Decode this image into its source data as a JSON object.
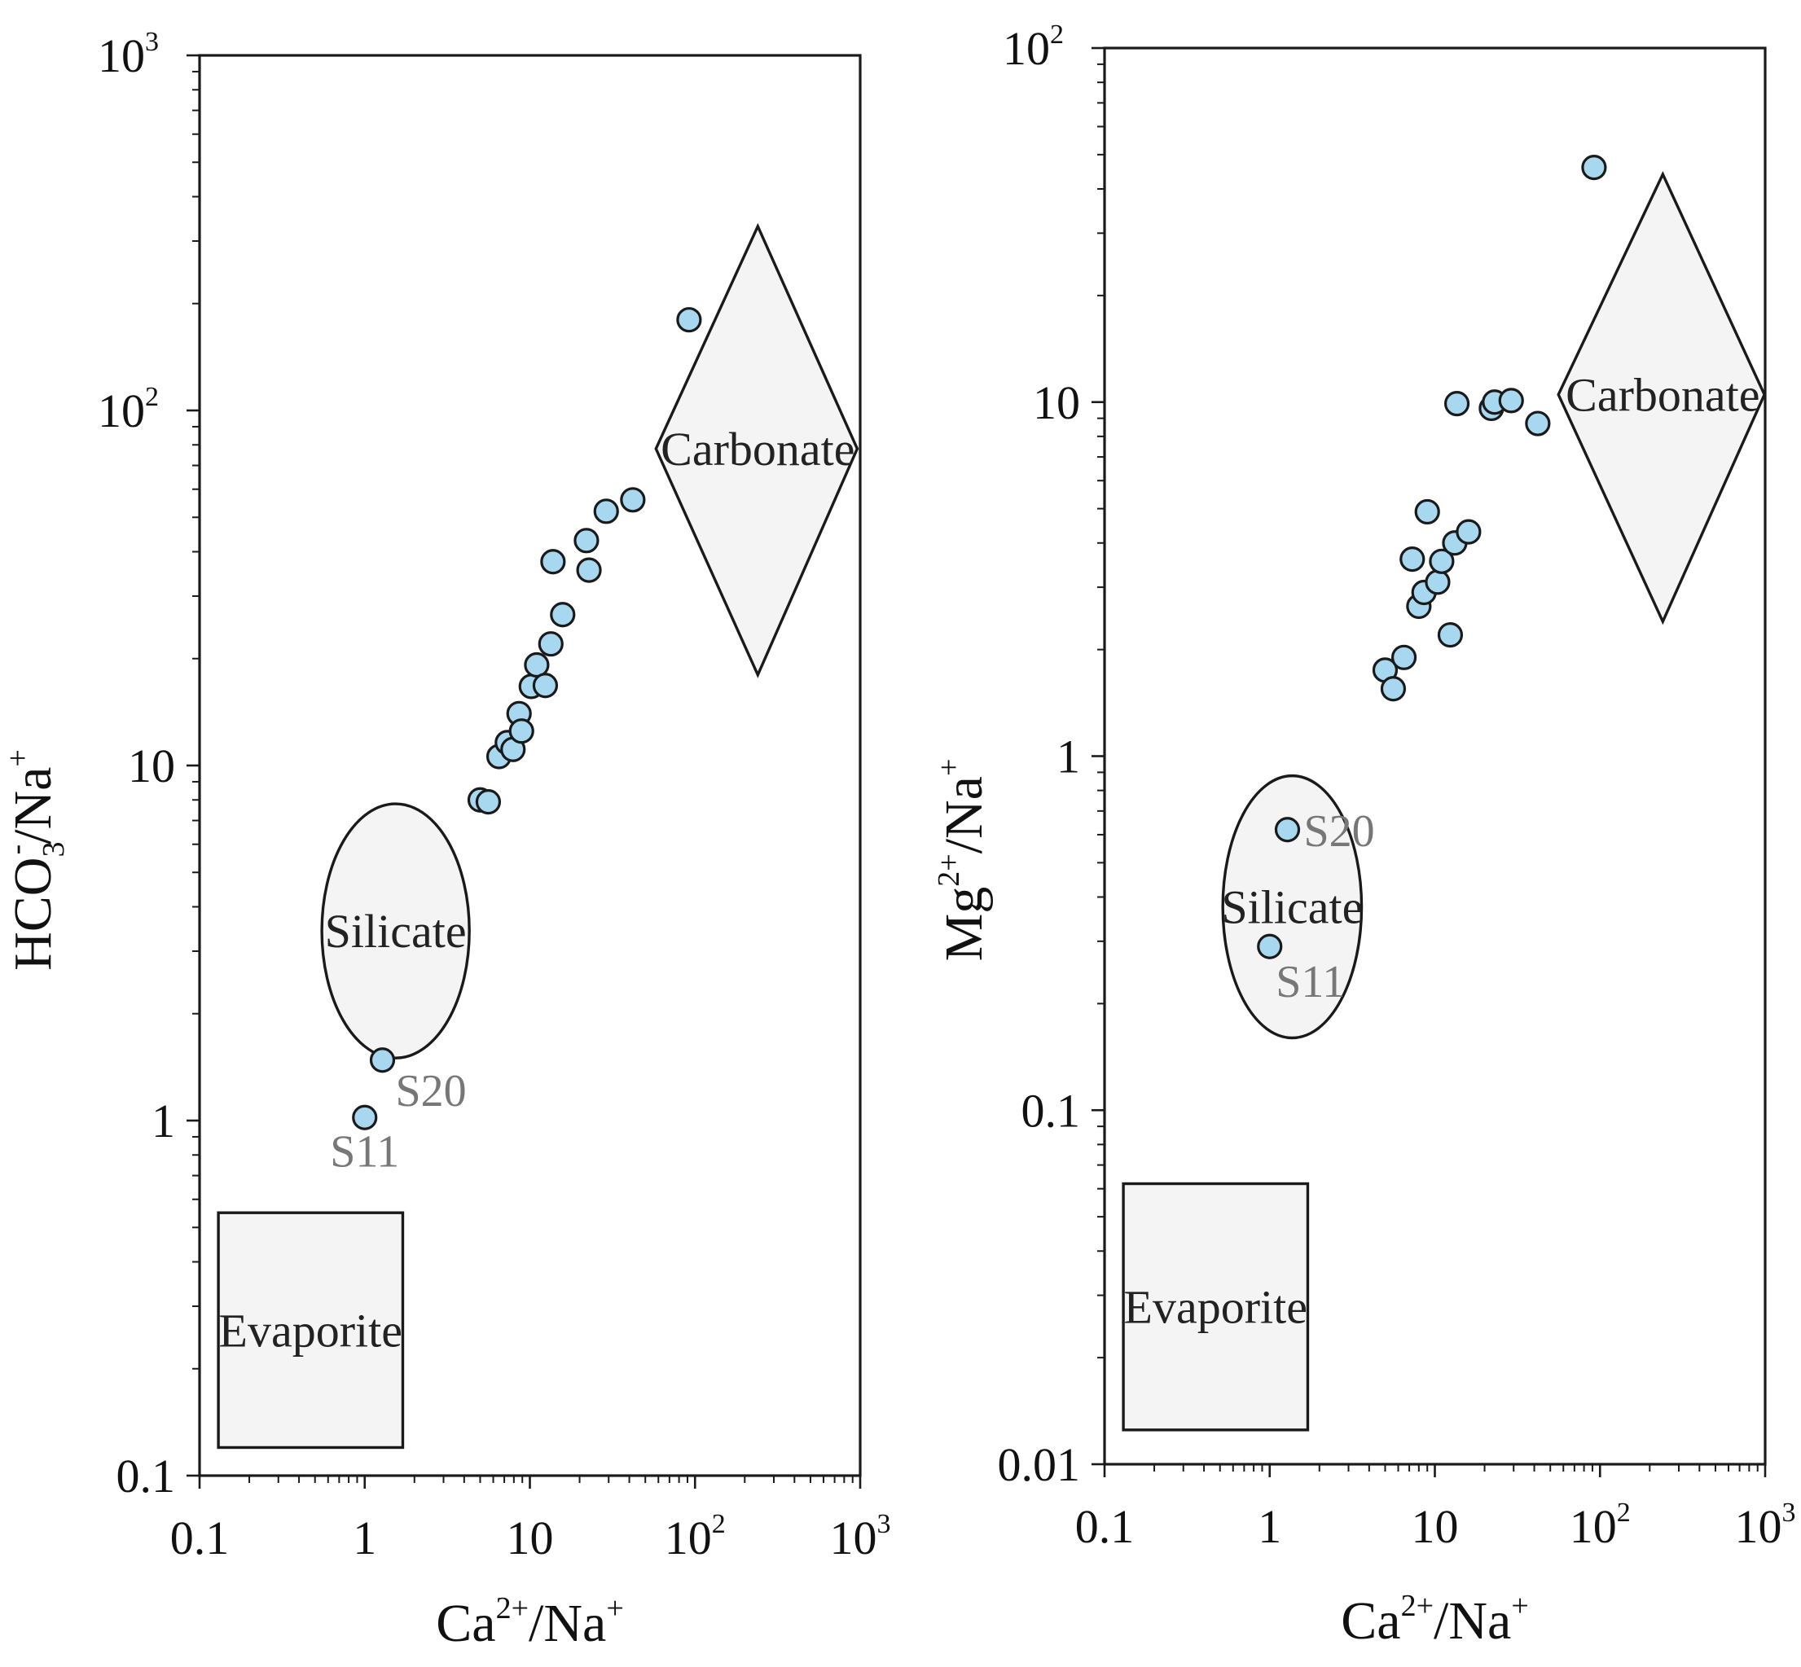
{
  "colors": {
    "point_fill": "#a8d8f0",
    "region_fill": "#f4f4f4",
    "stroke": "#1a1a1a",
    "sample_label": "#777777"
  },
  "chart_data": [
    {
      "type": "scatter",
      "xscale": "log",
      "yscale": "log",
      "xlim": [
        0.1,
        1000
      ],
      "ylim": [
        0.1,
        1000
      ],
      "xlabel": "Ca2+/Na+",
      "ylabel": "HCO3-/Na+",
      "xlabel_parts": {
        "base": "Ca",
        "sup": "2+",
        "rest": "/Na",
        "sup2": "+"
      },
      "ylabel_parts": {
        "base": "HCO",
        "sub": "3",
        "sup": "-",
        "rest": "/Na",
        "sup2": "+"
      },
      "xticks": [
        {
          "label": "0.1",
          "exp": ""
        },
        {
          "label": "1",
          "exp": ""
        },
        {
          "label": "10",
          "exp": ""
        },
        {
          "label": "10",
          "exp": "2"
        },
        {
          "label": "10",
          "exp": "3"
        }
      ],
      "yticks": [
        {
          "label": "0.1",
          "exp": ""
        },
        {
          "label": "1",
          "exp": ""
        },
        {
          "label": "10",
          "exp": ""
        },
        {
          "label": "10",
          "exp": "2"
        },
        {
          "label": "10",
          "exp": "3"
        }
      ],
      "regions": [
        {
          "name": "Evaporite",
          "shape": "rect",
          "x": [
            0.13,
            1.7
          ],
          "y": [
            0.12,
            0.55
          ]
        },
        {
          "name": "Silicate",
          "shape": "ellipse",
          "center": [
            1.55,
            3.4
          ],
          "x": [
            0.55,
            4.3
          ],
          "y": [
            1.5,
            7.8
          ]
        },
        {
          "name": "Carbonate",
          "shape": "diamond",
          "center": [
            240,
            78
          ],
          "x": [
            58,
            960
          ],
          "y": [
            18,
            330
          ]
        }
      ],
      "points": [
        {
          "x": 1.0,
          "y": 1.02,
          "label": "S11"
        },
        {
          "x": 1.28,
          "y": 1.48,
          "label": "S20"
        },
        {
          "x": 5.0,
          "y": 8.0
        },
        {
          "x": 5.6,
          "y": 7.9
        },
        {
          "x": 6.5,
          "y": 10.6
        },
        {
          "x": 7.3,
          "y": 11.6
        },
        {
          "x": 7.9,
          "y": 11.1
        },
        {
          "x": 8.6,
          "y": 14.0
        },
        {
          "x": 8.9,
          "y": 12.5
        },
        {
          "x": 10.2,
          "y": 16.7
        },
        {
          "x": 11.0,
          "y": 19.2
        },
        {
          "x": 12.4,
          "y": 16.8
        },
        {
          "x": 13.4,
          "y": 22.0
        },
        {
          "x": 13.8,
          "y": 37.5
        },
        {
          "x": 15.8,
          "y": 26.6
        },
        {
          "x": 22.0,
          "y": 43.0
        },
        {
          "x": 22.8,
          "y": 35.5
        },
        {
          "x": 29.0,
          "y": 52.0
        },
        {
          "x": 42.0,
          "y": 56.0
        },
        {
          "x": 92.0,
          "y": 180.0
        }
      ]
    },
    {
      "type": "scatter",
      "xscale": "log",
      "yscale": "log",
      "xlim": [
        0.1,
        1000
      ],
      "ylim": [
        0.01,
        100
      ],
      "xlabel": "Ca2+/Na+",
      "ylabel": "Mg2+/Na+",
      "xlabel_parts": {
        "base": "Ca",
        "sup": "2+",
        "rest": "/Na",
        "sup2": "+"
      },
      "ylabel_parts": {
        "base": "Mg",
        "sub": "",
        "sup": "2+",
        "rest": "/Na",
        "sup2": "+"
      },
      "xticks": [
        {
          "label": "0.1",
          "exp": ""
        },
        {
          "label": "1",
          "exp": ""
        },
        {
          "label": "10",
          "exp": ""
        },
        {
          "label": "10",
          "exp": "2"
        },
        {
          "label": "10",
          "exp": "3"
        }
      ],
      "yticks": [
        {
          "label": "0.01",
          "exp": ""
        },
        {
          "label": "0.1",
          "exp": ""
        },
        {
          "label": "1",
          "exp": ""
        },
        {
          "label": "10",
          "exp": ""
        },
        {
          "label": "10",
          "exp": "2"
        }
      ],
      "regions": [
        {
          "name": "Evaporite",
          "shape": "rect",
          "x": [
            0.13,
            1.7
          ],
          "y": [
            0.0125,
            0.062
          ]
        },
        {
          "name": "Silicate",
          "shape": "ellipse",
          "center": [
            1.35,
            0.37
          ],
          "x": [
            0.52,
            3.6
          ],
          "y": [
            0.16,
            0.88
          ]
        },
        {
          "name": "Carbonate",
          "shape": "diamond",
          "center": [
            240,
            10.5
          ],
          "x": [
            56,
            990
          ],
          "y": [
            2.4,
            44
          ]
        }
      ],
      "points": [
        {
          "x": 1.0,
          "y": 0.29,
          "label": "S11"
        },
        {
          "x": 1.28,
          "y": 0.62,
          "label": "S20"
        },
        {
          "x": 5.0,
          "y": 1.75
        },
        {
          "x": 5.6,
          "y": 1.55
        },
        {
          "x": 6.5,
          "y": 1.9
        },
        {
          "x": 7.3,
          "y": 3.6
        },
        {
          "x": 8.0,
          "y": 2.65
        },
        {
          "x": 8.6,
          "y": 2.9
        },
        {
          "x": 9.0,
          "y": 4.9
        },
        {
          "x": 10.4,
          "y": 3.1
        },
        {
          "x": 11.0,
          "y": 3.55
        },
        {
          "x": 12.4,
          "y": 2.2
        },
        {
          "x": 13.2,
          "y": 4.0
        },
        {
          "x": 13.6,
          "y": 9.9
        },
        {
          "x": 16.0,
          "y": 4.3
        },
        {
          "x": 22.0,
          "y": 9.6
        },
        {
          "x": 23.0,
          "y": 10.0
        },
        {
          "x": 29.0,
          "y": 10.1
        },
        {
          "x": 42.0,
          "y": 8.7
        },
        {
          "x": 92.0,
          "y": 46.0
        }
      ]
    }
  ]
}
